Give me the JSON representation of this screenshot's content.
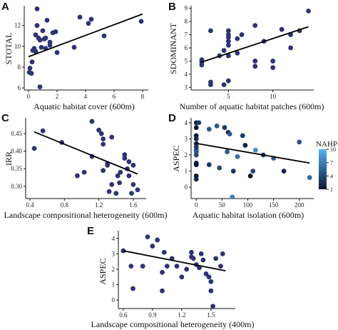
{
  "chart_data": [
    {
      "panel": "A",
      "type": "scatter",
      "xlabel": "Aquatic habitat cover (600m)",
      "ylabel": "STOTAL",
      "xlim": [
        -0.3,
        8.4
      ],
      "ylim": [
        5.8,
        13.9
      ],
      "xticks": [
        0,
        2,
        4,
        6,
        8
      ],
      "yticks": [
        6,
        8,
        10,
        12
      ],
      "point_color": "#2e3373",
      "points": [
        [
          0.05,
          7.5
        ],
        [
          0.1,
          7.9
        ],
        [
          0.2,
          7.4
        ],
        [
          0.25,
          8.5
        ],
        [
          0.3,
          9.6
        ],
        [
          0.4,
          9.8
        ],
        [
          0.5,
          11.1
        ],
        [
          0.5,
          9.5
        ],
        [
          0.6,
          12.0
        ],
        [
          0.6,
          13.6
        ],
        [
          0.7,
          10.8
        ],
        [
          0.8,
          10.6
        ],
        [
          0.8,
          6.1
        ],
        [
          0.9,
          9.9
        ],
        [
          1.0,
          11.5
        ],
        [
          1.1,
          10.7
        ],
        [
          1.2,
          9.8
        ],
        [
          1.2,
          10.8
        ],
        [
          1.3,
          12.5
        ],
        [
          1.5,
          10.4
        ],
        [
          1.5,
          10.1
        ],
        [
          1.7,
          11.3
        ],
        [
          1.9,
          11.4
        ],
        [
          2.0,
          9.4
        ],
        [
          3.2,
          9.9
        ],
        [
          3.6,
          12.8
        ],
        [
          4.2,
          12.2
        ],
        [
          4.4,
          12.6
        ],
        [
          5.3,
          11.0
        ],
        [
          7.9,
          12.4
        ]
      ],
      "trend": {
        "x": [
          0,
          8
        ],
        "y": [
          9.0,
          13.1
        ]
      }
    },
    {
      "panel": "B",
      "type": "scatter",
      "xlabel": "Number of aquatic habitat patches (600m)",
      "ylabel": "SDOMINANT",
      "xlim": [
        0.8,
        14.6
      ],
      "ylim": [
        2.8,
        9.2
      ],
      "xticks": [
        5,
        10
      ],
      "yticks": [
        3,
        4,
        5,
        6,
        7,
        8,
        9
      ],
      "point_color": "#2e3373",
      "points": [
        [
          2,
          5.1
        ],
        [
          2,
          4.9
        ],
        [
          2,
          4.7
        ],
        [
          3,
          7.3
        ],
        [
          3,
          3.4
        ],
        [
          3,
          3.2
        ],
        [
          4,
          5.4
        ],
        [
          4.5,
          3.2
        ],
        [
          4.5,
          5.8
        ],
        [
          5,
          6.2
        ],
        [
          5,
          6.5
        ],
        [
          5,
          7.0
        ],
        [
          5,
          6.8
        ],
        [
          5,
          7.3
        ],
        [
          5,
          5.4
        ],
        [
          5,
          3.5
        ],
        [
          6,
          6.7
        ],
        [
          6,
          5.6
        ],
        [
          6.5,
          7.0
        ],
        [
          8,
          7.7
        ],
        [
          8,
          5.0
        ],
        [
          8,
          4.6
        ],
        [
          9,
          6.5
        ],
        [
          10,
          5.0
        ],
        [
          10,
          4.5
        ],
        [
          11,
          7.4
        ],
        [
          12,
          7.0
        ],
        [
          12,
          6.0
        ],
        [
          13,
          7.3
        ],
        [
          14,
          8.8
        ]
      ],
      "trend": {
        "x": [
          1.9,
          14
        ],
        "y": [
          4.9,
          7.6
        ]
      }
    },
    {
      "panel": "C",
      "type": "scatter",
      "xlabel": "Landscape compositional heterogeneity (600m)",
      "ylabel": "IRR",
      "xlim": [
        0.35,
        1.75
      ],
      "ylim": [
        0.265,
        0.495
      ],
      "xticks": [
        0.4,
        0.8,
        1.2,
        1.6
      ],
      "xtick_labels": [
        "0.4",
        "0.8",
        "1.2",
        "1.6"
      ],
      "yticks": [
        0.3,
        0.35,
        0.4,
        0.45
      ],
      "ytick_labels": [
        "0.30",
        "0.35",
        "0.40",
        "0.45"
      ],
      "point_color": "#2e3373",
      "points": [
        [
          0.45,
          0.408
        ],
        [
          0.55,
          0.458
        ],
        [
          0.77,
          0.425
        ],
        [
          0.95,
          0.33
        ],
        [
          1.03,
          0.34
        ],
        [
          1.12,
          0.385
        ],
        [
          1.12,
          0.485
        ],
        [
          1.2,
          0.46
        ],
        [
          1.23,
          0.45
        ],
        [
          1.25,
          0.435
        ],
        [
          1.25,
          0.42
        ],
        [
          1.25,
          0.345
        ],
        [
          1.3,
          0.365
        ],
        [
          1.3,
          0.36
        ],
        [
          1.32,
          0.285
        ],
        [
          1.35,
          0.44
        ],
        [
          1.35,
          0.305
        ],
        [
          1.4,
          0.28
        ],
        [
          1.42,
          0.33
        ],
        [
          1.44,
          0.31
        ],
        [
          1.45,
          0.34
        ],
        [
          1.5,
          0.39
        ],
        [
          1.5,
          0.38
        ],
        [
          1.53,
          0.35
        ],
        [
          1.55,
          0.37
        ],
        [
          1.55,
          0.33
        ],
        [
          1.58,
          0.28
        ],
        [
          1.6,
          0.305
        ],
        [
          1.6,
          0.36
        ],
        [
          1.65,
          0.29
        ]
      ],
      "trend": {
        "x": [
          0.45,
          1.65
        ],
        "y": [
          0.455,
          0.335
        ]
      }
    },
    {
      "panel": "D",
      "type": "scatter",
      "xlabel": "Aquatic habitat isolation (600m)",
      "ylabel": "ASPEC",
      "xlim": [
        -10,
        228
      ],
      "ylim": [
        -0.7,
        4.3
      ],
      "xticks": [
        0,
        50,
        100,
        150,
        200
      ],
      "yticks": [
        0,
        1,
        2,
        3,
        4
      ],
      "legend": {
        "title": "NAHP",
        "ticks": [
          "10",
          "7",
          "4",
          "1"
        ],
        "tick_values": [
          10,
          7,
          4,
          1
        ],
        "color_low": "#0b1733",
        "color_high": "#56b1f7",
        "position": "right"
      },
      "points": [
        [
          0,
          4.0,
          2
        ],
        [
          0,
          3.7,
          1
        ],
        [
          0,
          3.2,
          1
        ],
        [
          0,
          3.0,
          2
        ],
        [
          0,
          2.7,
          2
        ],
        [
          0,
          2.5,
          3
        ],
        [
          0,
          2.3,
          3
        ],
        [
          0,
          2.2,
          5
        ],
        [
          0,
          2.0,
          4
        ],
        [
          0,
          1.5,
          2
        ],
        [
          0,
          1.4,
          1
        ],
        [
          0,
          0.7,
          1
        ],
        [
          0,
          0.5,
          2
        ],
        [
          5,
          4.0,
          3
        ],
        [
          25,
          3.6,
          5
        ],
        [
          25,
          1.4,
          3
        ],
        [
          40,
          3.8,
          5
        ],
        [
          45,
          1.2,
          4
        ],
        [
          55,
          3.7,
          3
        ],
        [
          60,
          2.2,
          5
        ],
        [
          62,
          3.4,
          2
        ],
        [
          65,
          3.3,
          5
        ],
        [
          70,
          -0.6,
          7
        ],
        [
          72,
          1.0,
          3
        ],
        [
          80,
          1.9,
          6
        ],
        [
          90,
          3.2,
          3
        ],
        [
          95,
          2.6,
          2
        ],
        [
          105,
          0.7,
          1
        ],
        [
          110,
          1.0,
          4
        ],
        [
          115,
          2.3,
          8
        ],
        [
          130,
          2.0,
          3
        ],
        [
          150,
          1.8,
          5
        ],
        [
          170,
          1.0,
          2
        ],
        [
          200,
          2.8,
          5
        ],
        [
          220,
          0.6,
          6
        ]
      ],
      "trend": {
        "x": [
          0,
          220
        ],
        "y": [
          2.72,
          1.5
        ]
      }
    },
    {
      "panel": "E",
      "type": "scatter",
      "xlabel": "Landscape compositional heterogeneity (400m)",
      "ylabel": "ASPEC",
      "xlim": [
        0.55,
        1.75
      ],
      "ylim": [
        -0.55,
        4.5
      ],
      "xticks": [
        0.6,
        0.9,
        1.2,
        1.5
      ],
      "xtick_labels": [
        "0.6",
        "0.9",
        "1.2",
        "1.5"
      ],
      "yticks": [
        0,
        1,
        2,
        3,
        4
      ],
      "point_color": "#2e3373",
      "points": [
        [
          0.6,
          3.2
        ],
        [
          0.68,
          2.2
        ],
        [
          0.7,
          0.75
        ],
        [
          0.8,
          2.2
        ],
        [
          0.85,
          4.1
        ],
        [
          0.9,
          3.5
        ],
        [
          0.95,
          3.9
        ],
        [
          1.0,
          0.6
        ],
        [
          1.0,
          1.8
        ],
        [
          1.02,
          3.1
        ],
        [
          1.05,
          2.2
        ],
        [
          1.1,
          2.7
        ],
        [
          1.15,
          2.2
        ],
        [
          1.2,
          1.5
        ],
        [
          1.25,
          2.0
        ],
        [
          1.3,
          2.8
        ],
        [
          1.3,
          3.1
        ],
        [
          1.32,
          2.7
        ],
        [
          1.35,
          2.3
        ],
        [
          1.38,
          2.1
        ],
        [
          1.4,
          3.0
        ],
        [
          1.42,
          2.6
        ],
        [
          1.45,
          1.7
        ],
        [
          1.48,
          1.5
        ],
        [
          1.5,
          0.6
        ],
        [
          1.5,
          1.2
        ],
        [
          1.52,
          -0.4
        ],
        [
          1.55,
          2.7
        ],
        [
          1.6,
          2.2
        ],
        [
          1.62,
          3.0
        ]
      ],
      "trend": {
        "x": [
          0.6,
          1.65
        ],
        "y": [
          3.2,
          1.9
        ]
      }
    }
  ]
}
